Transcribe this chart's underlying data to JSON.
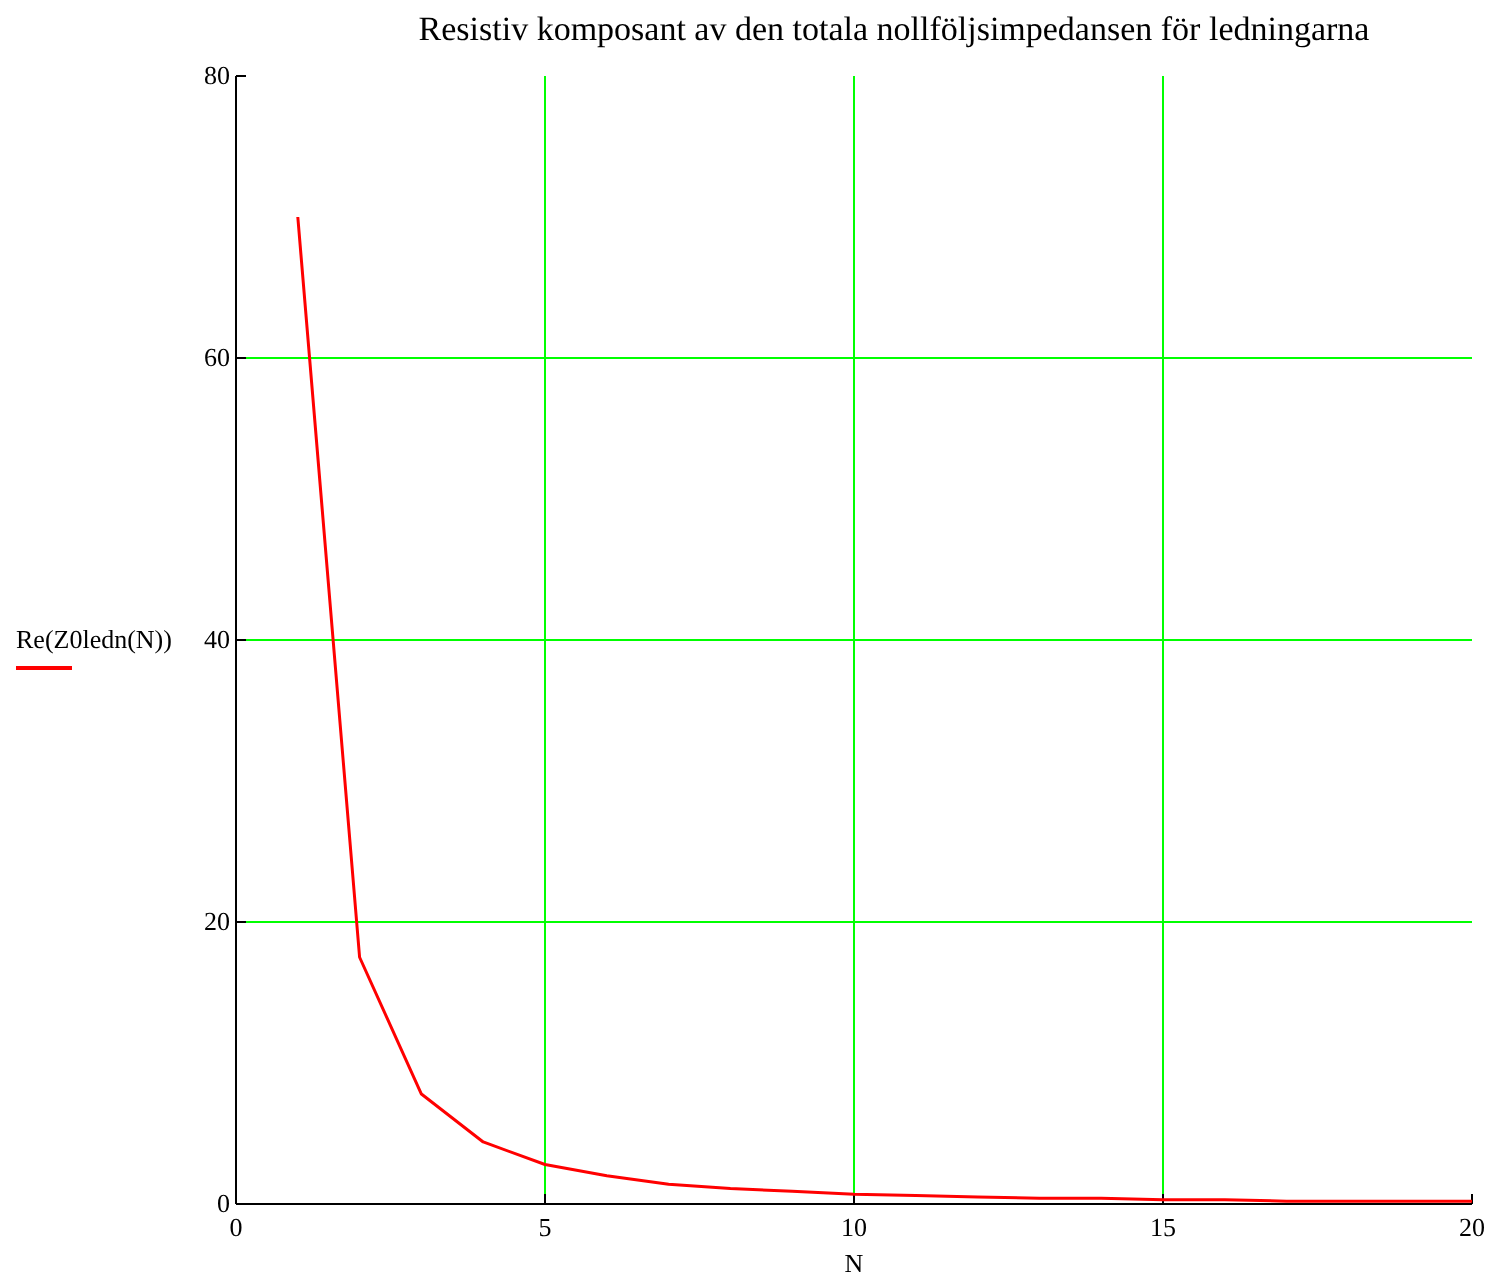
{
  "chart_data": {
    "type": "line",
    "title": "Resistiv komposant av den totala nollföljsimpedansen för ledningarna",
    "xlabel": "N",
    "x": [
      1,
      2,
      3,
      4,
      5,
      6,
      7,
      8,
      9,
      10,
      11,
      12,
      13,
      14,
      15,
      16,
      17,
      18,
      19,
      20
    ],
    "series": [
      {
        "name": "Re(Z0ledn(N))",
        "color": "#ff0000",
        "values": [
          70,
          17.5,
          7.8,
          4.4,
          2.8,
          2,
          1.4,
          1.1,
          0.9,
          0.7,
          0.6,
          0.5,
          0.4,
          0.4,
          0.3,
          0.3,
          0.2,
          0.2,
          0.2,
          0.2
        ]
      }
    ],
    "xlim": [
      0,
      20
    ],
    "xticks": [
      0,
      5,
      10,
      15,
      20
    ],
    "ylim": [
      0,
      80
    ],
    "yticks": [
      0,
      20,
      40,
      60,
      80
    ],
    "grid": true,
    "legend": "left",
    "marker": "none",
    "line_style": "solid"
  }
}
